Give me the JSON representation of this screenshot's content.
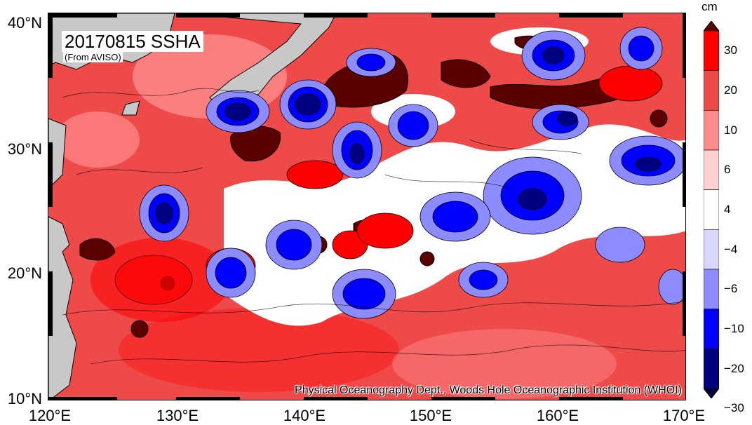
{
  "title": "20170815 SSHA",
  "subtitle": "(From AVISO)",
  "credit": "Physical Oceanography Dept., Woods Hole Oceanographic Institution (WHOI)",
  "latitude_labels": [
    "40°N",
    "30°N",
    "20°N",
    "10°N"
  ],
  "longitude_labels": [
    "120°E",
    "130°E",
    "140°E",
    "150°E",
    "160°E",
    "170°E"
  ],
  "colorbar": {
    "unit": "cm",
    "labels": [
      "30",
      "20",
      "10",
      "6",
      "4",
      "−4",
      "−6",
      "−10",
      "−20",
      "−30"
    ],
    "colors": [
      "#5a0000",
      "#ff0000",
      "#ee4a4a",
      "#ff8c8c",
      "#ffd0d0",
      "#ffffff",
      "#d6d6ff",
      "#8c8cff",
      "#0000ff",
      "#000080",
      "#00003a"
    ]
  },
  "chart_data": {
    "type": "heatmap",
    "title": "20170815 SSHA",
    "xlabel": "",
    "ylabel": "",
    "xlim": [
      120,
      170
    ],
    "ylim": [
      10,
      40
    ],
    "unit": "cm",
    "level_breaks": [
      -30,
      -20,
      -10,
      -6,
      -4,
      4,
      6,
      10,
      20,
      30
    ],
    "features": [
      {
        "type": "positive",
        "lon": 146.5,
        "lat": 35.5,
        "value": 35
      },
      {
        "type": "positive",
        "lon": 153,
        "lat": 35.2,
        "value": 32
      },
      {
        "type": "positive",
        "lon": 160,
        "lat": 34,
        "value": 35
      },
      {
        "type": "positive",
        "lon": 164,
        "lat": 34.8,
        "value": 32
      },
      {
        "type": "positive",
        "lon": 136,
        "lat": 30.5,
        "value": 33
      },
      {
        "type": "positive",
        "lon": 123.5,
        "lat": 22,
        "value": 28
      },
      {
        "type": "positive",
        "lon": 146,
        "lat": 23.5,
        "value": 26
      },
      {
        "type": "positive",
        "lon": 153,
        "lat": 37,
        "value": 30
      },
      {
        "type": "negative",
        "lon": 135,
        "lat": 32.5,
        "value": -32
      },
      {
        "type": "negative",
        "lon": 140,
        "lat": 33,
        "value": -32
      },
      {
        "type": "negative",
        "lon": 130,
        "lat": 25,
        "value": -28
      },
      {
        "type": "negative",
        "lon": 159,
        "lat": 26.5,
        "value": -22
      },
      {
        "type": "negative",
        "lon": 137,
        "lat": 21,
        "value": -24
      },
      {
        "type": "negative",
        "lon": 149,
        "lat": 31,
        "value": -22
      },
      {
        "type": "negative",
        "lon": 160,
        "lat": 31.5,
        "value": -28
      },
      {
        "type": "negative",
        "lon": 165,
        "lat": 26.5,
        "value": -20
      },
      {
        "type": "negative",
        "lon": 144,
        "lat": 18.5,
        "value": -20
      },
      {
        "type": "negative",
        "lon": 142,
        "lat": 29,
        "value": -20
      },
      {
        "type": "negative",
        "lon": 160,
        "lat": 37.5,
        "value": -22
      }
    ]
  }
}
